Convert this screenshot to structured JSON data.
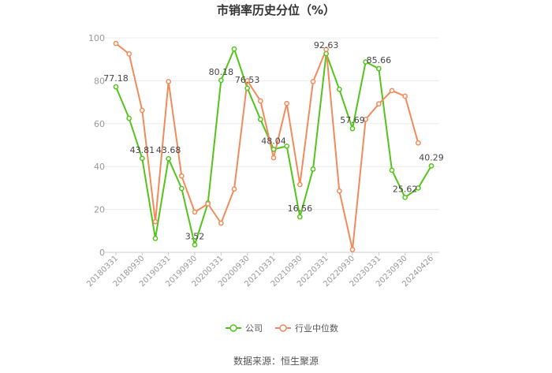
{
  "title": "市销率历史分位（%）",
  "source": "数据来源：恒生聚源",
  "colors": {
    "company": "#52c41a",
    "industry": "#f28a5a",
    "grid": "#ebebeb",
    "axis": "#cccccc"
  },
  "chart_data": {
    "type": "line",
    "title": "市销率历史分位（%）",
    "ylim": [
      0,
      100
    ],
    "yticks": [
      0,
      20,
      40,
      60,
      80,
      100
    ],
    "grid": true,
    "legend_position": "bottom",
    "x": [
      "20180331",
      "20180630",
      "20180930",
      "20181231",
      "20190331",
      "20190630",
      "20190930",
      "20191231",
      "20200331",
      "20200630",
      "20200930",
      "20201231",
      "20210331",
      "20210630",
      "20210930",
      "20211231",
      "20220331",
      "20220630",
      "20220930",
      "20221231",
      "20230331",
      "20230630",
      "20230930",
      "20231231",
      "20240426"
    ],
    "xtick_labels": [
      "20180331",
      "20180930",
      "20190331",
      "20190930",
      "20200331",
      "20200930",
      "20210331",
      "20210930",
      "20220331",
      "20220930",
      "20230331",
      "20230930",
      "20240426"
    ],
    "xtick_indices": [
      0,
      2,
      4,
      6,
      8,
      10,
      12,
      14,
      16,
      18,
      20,
      22,
      24
    ],
    "series": [
      {
        "name": "公司",
        "color": "#52c41a",
        "values": [
          77.18,
          62.5,
          43.81,
          6.5,
          43.68,
          29.8,
          3.52,
          23.0,
          80.18,
          94.8,
          76.53,
          62.0,
          48.04,
          49.5,
          16.56,
          38.8,
          92.63,
          76.0,
          57.69,
          88.8,
          85.66,
          38.3,
          25.62,
          30.0,
          40.29
        ]
      },
      {
        "name": "行业中位数",
        "color": "#f28a5a",
        "values": [
          97.4,
          92.5,
          66.2,
          14.3,
          79.6,
          35.6,
          18.8,
          22.6,
          13.6,
          29.5,
          80.0,
          70.6,
          44.1,
          69.4,
          31.6,
          79.6,
          94.6,
          28.6,
          1.3,
          62.0,
          69.2,
          75.4,
          72.8,
          51.0,
          null
        ]
      }
    ],
    "data_labels": [
      {
        "series": 0,
        "index": 0,
        "text": "77.18"
      },
      {
        "series": 0,
        "index": 2,
        "text": "43.81"
      },
      {
        "series": 0,
        "index": 4,
        "text": "43.68"
      },
      {
        "series": 0,
        "index": 6,
        "text": "3.52"
      },
      {
        "series": 0,
        "index": 8,
        "text": "80.18"
      },
      {
        "series": 0,
        "index": 10,
        "text": "76.53"
      },
      {
        "series": 0,
        "index": 12,
        "text": "48.04"
      },
      {
        "series": 0,
        "index": 14,
        "text": "16.56"
      },
      {
        "series": 0,
        "index": 16,
        "text": "92.63"
      },
      {
        "series": 0,
        "index": 18,
        "text": "57.69"
      },
      {
        "series": 0,
        "index": 20,
        "text": "85.66"
      },
      {
        "series": 0,
        "index": 22,
        "text": "25.62"
      },
      {
        "series": 0,
        "index": 24,
        "text": "40.29"
      }
    ]
  }
}
